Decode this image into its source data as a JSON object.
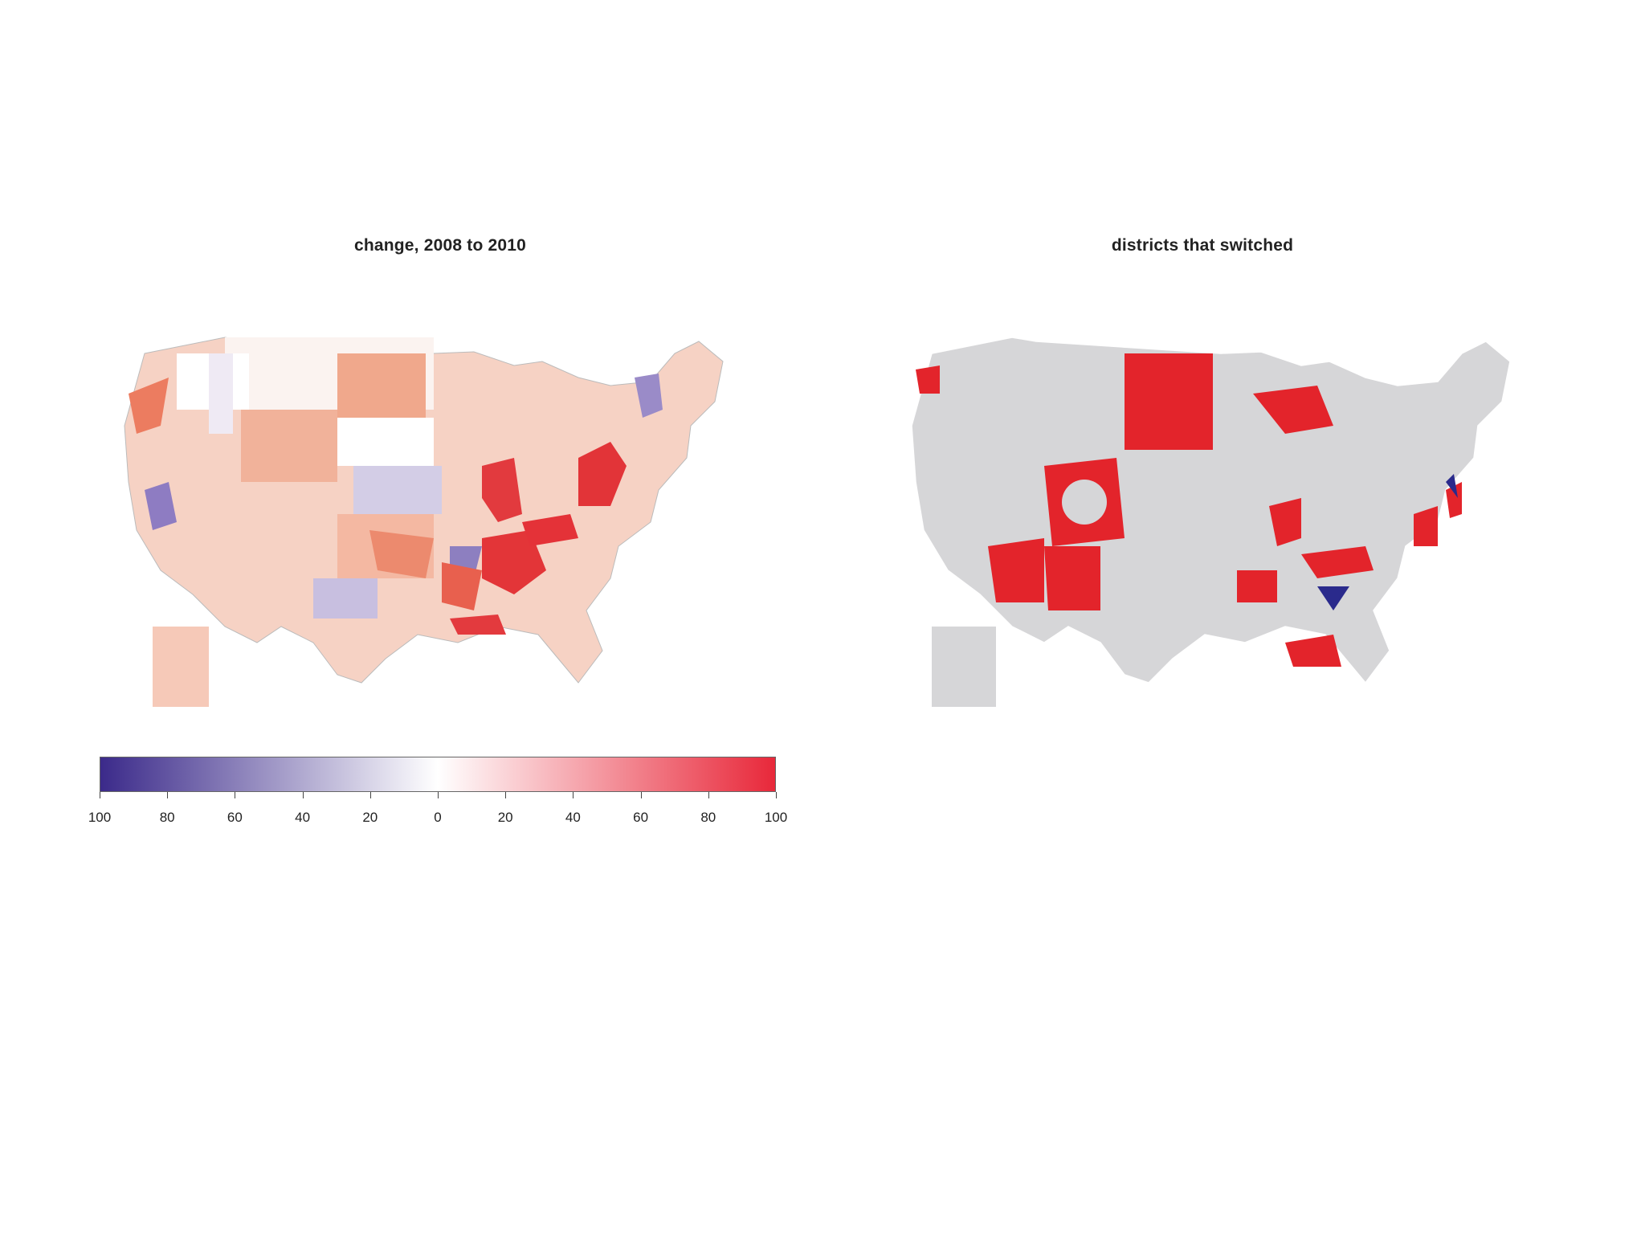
{
  "panels": {
    "left": {
      "title": "change, 2008 to 2010"
    },
    "right": {
      "title": "districts that switched"
    }
  },
  "colors": {
    "scale_blue": "#3b2a8a",
    "scale_white": "#ffffff",
    "scale_red": "#e8283a",
    "switched_red": "#e3242b",
    "switched_blue": "#2a2a8c",
    "unchanged_gray": "#d6d6d8",
    "border_white": "#ffffff",
    "state_border": "#a0a0a0"
  },
  "legend": {
    "ticks": [
      "100",
      "80",
      "60",
      "40",
      "20",
      "0",
      "20",
      "40",
      "60",
      "80",
      "100"
    ],
    "fractions": [
      0,
      0.1,
      0.2,
      0.3,
      0.4,
      0.5,
      0.6,
      0.7,
      0.8,
      0.9,
      1.0
    ]
  }
}
